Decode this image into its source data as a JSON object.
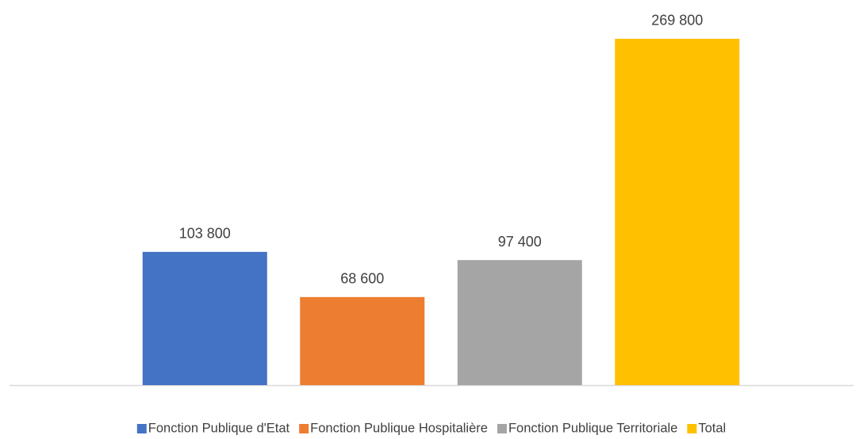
{
  "chart_data": {
    "type": "bar",
    "categories": [
      null
    ],
    "ylim": [
      0,
      300000
    ],
    "legend": "bottom",
    "series": [
      {
        "name": "Fonction Publique d'Etat",
        "color": "#4472c4",
        "values": [
          103800
        ],
        "value_labels": [
          "103 800"
        ]
      },
      {
        "name": "Fonction Publique Hospitalière",
        "color": "#ed7d31",
        "values": [
          68600
        ],
        "value_labels": [
          "68 600"
        ]
      },
      {
        "name": "Fonction Publique Territoriale",
        "color": "#a5a5a5",
        "values": [
          97400
        ],
        "value_labels": [
          "97 400"
        ]
      },
      {
        "name": "Total",
        "color": "#ffc000",
        "values": [
          269800
        ],
        "value_labels": [
          "269 800"
        ]
      }
    ]
  }
}
